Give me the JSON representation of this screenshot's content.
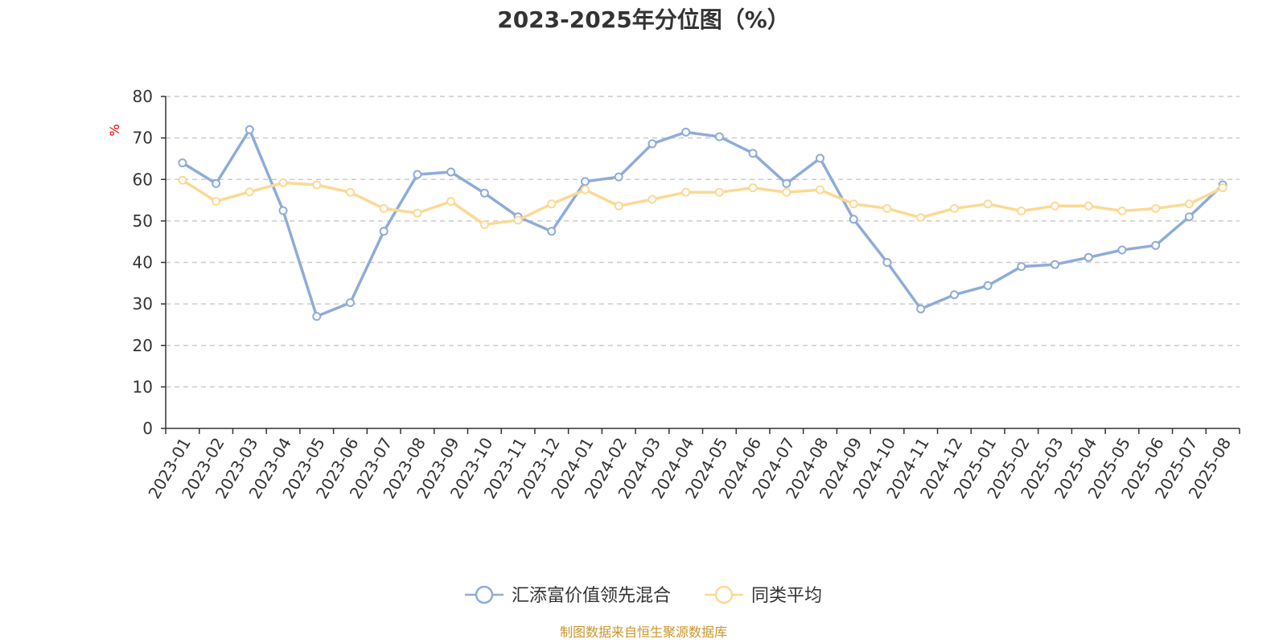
{
  "chart_data": {
    "type": "line",
    "title": "2023-2025年分位图（%）",
    "ylabel": "%",
    "xlabel": "",
    "ylim": [
      0,
      80
    ],
    "yticks": [
      0,
      10,
      20,
      30,
      40,
      50,
      60,
      70,
      80
    ],
    "grid": true,
    "legend_position": "bottom",
    "categories": [
      "2023-01",
      "2023-02",
      "2023-03",
      "2023-04",
      "2023-05",
      "2023-06",
      "2023-07",
      "2023-08",
      "2023-09",
      "2023-10",
      "2023-11",
      "2023-12",
      "2024-01",
      "2024-02",
      "2024-03",
      "2024-04",
      "2024-05",
      "2024-06",
      "2024-07",
      "2024-08",
      "2024-09",
      "2024-10",
      "2024-11",
      "2024-12",
      "2025-01",
      "2025-02",
      "2025-03",
      "2025-04",
      "2025-05",
      "2025-06",
      "2025-07",
      "2025-08"
    ],
    "series": [
      {
        "name": "汇添富价值领先混合",
        "color": "#8eacd8",
        "values": [
          64,
          59,
          72,
          52.5,
          27,
          30.3,
          47.5,
          61.2,
          61.8,
          56.7,
          51,
          47.5,
          59.5,
          60.6,
          68.6,
          71.4,
          70.3,
          66.3,
          59,
          65.1,
          50.4,
          40,
          28.8,
          32.2,
          34.4,
          39,
          39.5,
          41.2,
          43,
          44.1,
          51,
          58.7
        ]
      },
      {
        "name": "同类平均",
        "color": "#fcd993",
        "values": [
          59.8,
          54.7,
          57,
          59.2,
          58.7,
          56.9,
          53,
          51.9,
          54.7,
          49.1,
          50.2,
          54.1,
          57.5,
          53.6,
          55.2,
          56.9,
          56.9,
          58,
          56.9,
          57.5,
          54.1,
          53,
          50.8,
          53,
          54.1,
          52.4,
          53.6,
          53.6,
          52.4,
          53,
          54.1,
          58
        ]
      }
    ]
  },
  "footer": {
    "source": "制图数据来自恒生聚源数据库"
  }
}
